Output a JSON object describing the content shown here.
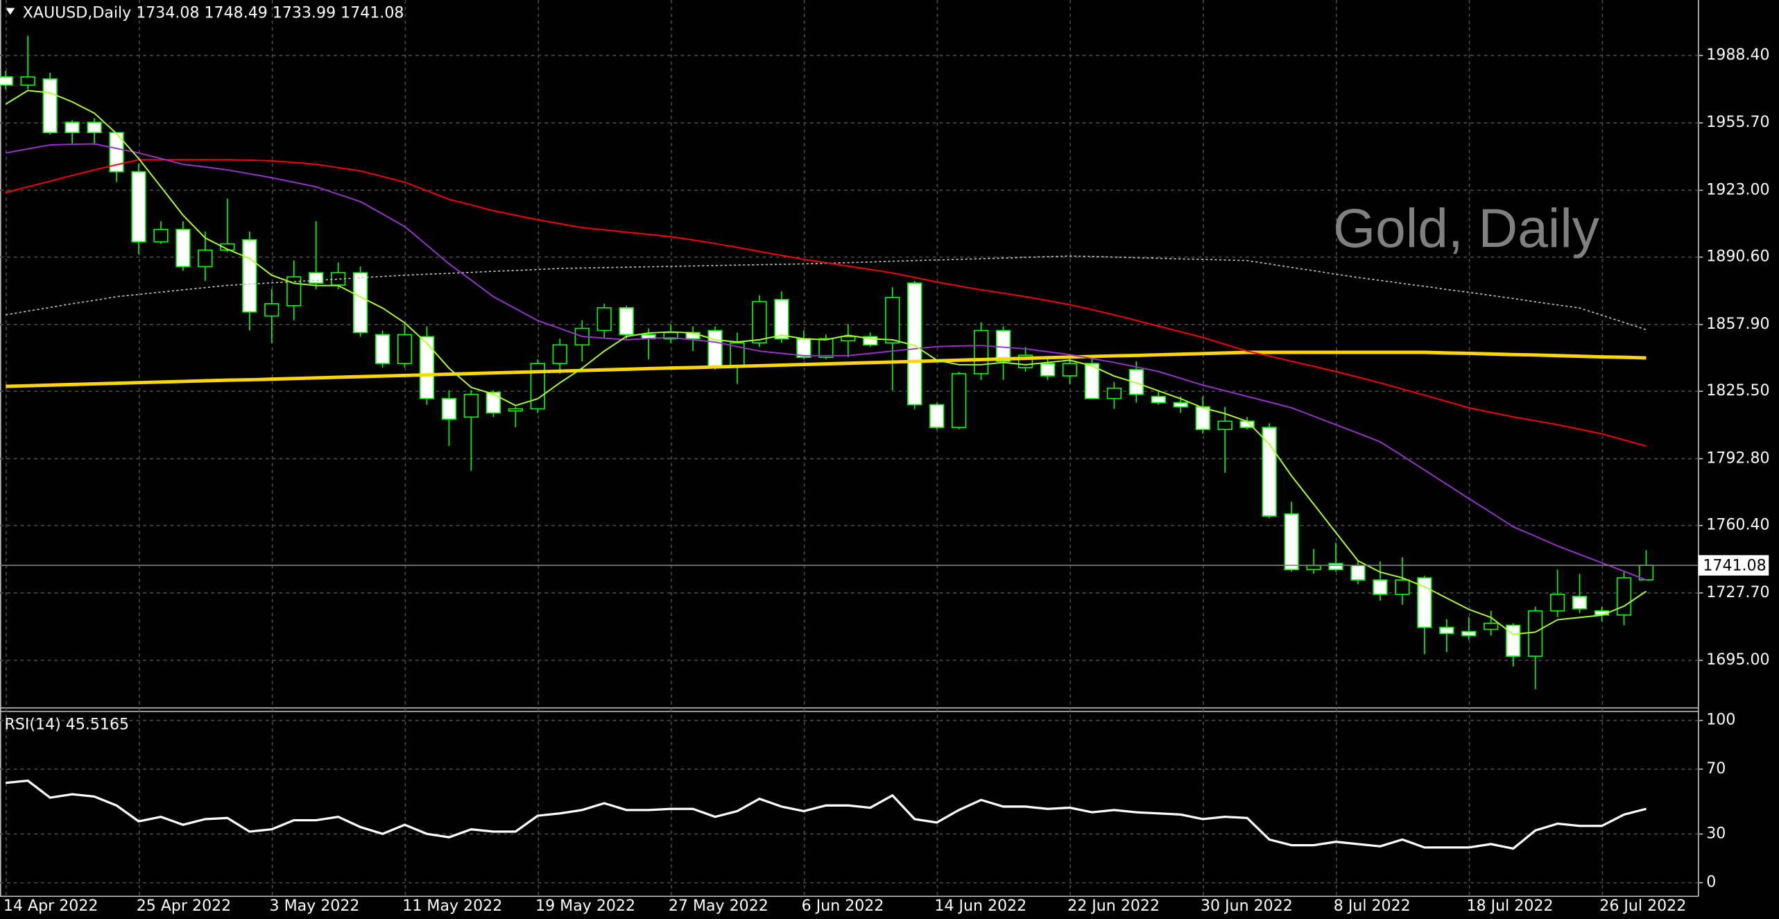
{
  "chart_data": [
    {
      "type": "candlestick",
      "title": "XAUUSD,Daily  1734.08 1748.49 1733.99 1741.08",
      "watermark": "Gold, Daily",
      "categories": [
        "14 Apr 2022",
        null,
        null,
        null,
        null,
        null,
        "25 Apr 2022",
        null,
        null,
        null,
        null,
        null,
        "3 May 2022",
        null,
        null,
        null,
        null,
        null,
        "11 May 2022",
        null,
        null,
        null,
        null,
        null,
        "19 May 2022",
        null,
        null,
        null,
        null,
        null,
        "27 May 2022",
        null,
        null,
        null,
        null,
        null,
        "6 Jun 2022",
        null,
        null,
        null,
        null,
        null,
        "14 Jun 2022",
        null,
        null,
        null,
        null,
        null,
        "22 Jun 2022",
        null,
        null,
        null,
        null,
        null,
        "30 Jun 2022",
        null,
        null,
        null,
        null,
        null,
        "8 Jul 2022",
        null,
        null,
        null,
        null,
        null,
        "18 Jul 2022",
        null,
        null,
        null,
        null,
        null,
        "26 Jul 2022",
        null,
        null
      ],
      "open": [
        1978,
        1974,
        1977,
        1956,
        1956,
        1951,
        1932,
        1898,
        1904,
        1886,
        1894,
        1899,
        1862,
        1867,
        1883,
        1877,
        1883,
        1853,
        1839,
        1852,
        1822,
        1813,
        1825,
        1816,
        1817,
        1839,
        1848,
        1855,
        1866,
        1853,
        1851,
        1854,
        1855,
        1838,
        1849,
        1870,
        1851,
        1842,
        1850,
        1852,
        1849,
        1878,
        1819,
        1808,
        1834,
        1855,
        1837,
        1839,
        1833,
        1839,
        1822,
        1836,
        1823,
        1820,
        1818,
        1807,
        1811,
        1808,
        1766,
        1739,
        1742,
        1741,
        1734,
        1727,
        1735,
        1711,
        1709,
        1710,
        1712,
        1697,
        1719,
        1726,
        1719,
        1717,
        1734.08
      ],
      "high": [
        1981,
        1998,
        1980,
        1957,
        1958,
        1951,
        1936,
        1908,
        1908,
        1903,
        1919,
        1903,
        1875,
        1889,
        1908,
        1888,
        1886,
        1855,
        1858,
        1857,
        1826,
        1826,
        1826,
        1818,
        1841,
        1851,
        1860,
        1868,
        1867,
        1856,
        1858,
        1857,
        1857,
        1854,
        1872,
        1874,
        1855,
        1853,
        1858,
        1854,
        1876,
        1879,
        1820,
        1835,
        1859,
        1857,
        1847,
        1842,
        1843,
        1843,
        1830,
        1840,
        1826,
        1823,
        1823,
        1818,
        1813,
        1810,
        1772,
        1749,
        1752,
        1743,
        1743,
        1745,
        1736,
        1715,
        1716,
        1719,
        1713,
        1721,
        1739,
        1737,
        1721,
        1738,
        1748.49
      ],
      "low": [
        1972,
        1972,
        1950,
        1945,
        1945,
        1927,
        1892,
        1897,
        1884,
        1879,
        1893,
        1855,
        1849,
        1860,
        1875,
        1875,
        1852,
        1837,
        1837,
        1819,
        1799,
        1787,
        1813,
        1808,
        1815,
        1834,
        1840,
        1851,
        1851,
        1841,
        1849,
        1845,
        1836,
        1829,
        1847,
        1849,
        1841,
        1841,
        1842,
        1847,
        1826,
        1817,
        1807,
        1807,
        1831,
        1831,
        1835,
        1831,
        1829,
        1822,
        1817,
        1820,
        1819,
        1815,
        1805,
        1786,
        1807,
        1764,
        1738,
        1737,
        1738,
        1732,
        1724,
        1722,
        1698,
        1699,
        1705,
        1707,
        1692,
        1681,
        1716,
        1718,
        1714,
        1712,
        1733.99
      ],
      "close": [
        1974,
        1978,
        1951,
        1951,
        1951,
        1932,
        1898,
        1904,
        1886,
        1894,
        1897,
        1864,
        1868,
        1881,
        1878,
        1883,
        1854,
        1839,
        1853,
        1822,
        1812,
        1824,
        1815,
        1817,
        1839,
        1848,
        1856,
        1866,
        1853,
        1851,
        1854,
        1851,
        1837,
        1849,
        1869,
        1851,
        1842,
        1851,
        1852,
        1848,
        1871,
        1819,
        1808,
        1834,
        1855,
        1840,
        1843,
        1833,
        1839,
        1822,
        1827,
        1824,
        1820,
        1818,
        1807,
        1811,
        1808,
        1765,
        1739,
        1741,
        1739,
        1734,
        1727,
        1734,
        1711,
        1708,
        1707,
        1713,
        1697,
        1719,
        1727,
        1720,
        1717,
        1735,
        1741.08
      ],
      "up_color": "#000000",
      "down_color": "#ffffff",
      "wick_color": "#00ff00",
      "overlays": [
        {
          "color": "#c0c0c0",
          "style": "dotted",
          "values": [
            1862.6,
            1864.4,
            1866.2,
            1868.0,
            1869.6,
            1871.4,
            1872.5,
            1873.6,
            1874.7,
            1875.8,
            1876.9,
            1877.5,
            1878.1,
            1878.7,
            1879.3,
            1879.9,
            1880.6,
            1881.2,
            1881.8,
            1882.3,
            1882.7,
            1883.2,
            1883.7,
            1884.1,
            1884.6,
            1885.1,
            1885.3,
            1885.5,
            1885.7,
            1885.9,
            1886.1,
            1886.3,
            1886.5,
            1886.7,
            1886.9,
            1887.1,
            1887.3,
            1887.6,
            1887.9,
            1888.2,
            1888.6,
            1888.9,
            1889.2,
            1889.5,
            1889.8,
            1890.1,
            1890.5,
            1890.8,
            1891.1,
            1890.9,
            1890.6,
            1890.3,
            1890.0,
            1889.7,
            1889.5,
            1889.2,
            1888.9,
            1887.3,
            1885.6,
            1884.0,
            1882.3,
            1880.7,
            1879.3,
            1877.8,
            1876.4,
            1874.9,
            1873.5,
            1872.0,
            1870.5,
            1868.9,
            1867.4,
            1865.9,
            1862.4,
            1858.9,
            1855.4
          ]
        },
        {
          "color": "#ffd700",
          "style": "thick",
          "values": [
            1827.9,
            1828.2,
            1828.5,
            1828.8,
            1829.1,
            1829.4,
            1829.7,
            1830.0,
            1830.3,
            1830.6,
            1830.9,
            1831.1,
            1831.4,
            1831.7,
            1832.0,
            1832.3,
            1832.6,
            1832.9,
            1833.2,
            1833.5,
            1833.8,
            1834.1,
            1834.4,
            1834.7,
            1835.0,
            1835.3,
            1835.6,
            1835.9,
            1836.2,
            1836.5,
            1836.8,
            1837.0,
            1837.3,
            1837.6,
            1837.9,
            1838.2,
            1838.5,
            1838.8,
            1839.1,
            1839.4,
            1839.7,
            1840.0,
            1840.3,
            1840.6,
            1840.9,
            1841.2,
            1841.5,
            1841.8,
            1842.1,
            1842.4,
            1842.7,
            1842.9,
            1843.2,
            1843.5,
            1843.8,
            1844.1,
            1844.4,
            1844.4,
            1844.4,
            1844.4,
            1844.4,
            1844.4,
            1844.4,
            1844.4,
            1844.4,
            1844.1,
            1843.9,
            1843.6,
            1843.3,
            1843.1,
            1842.8,
            1842.5,
            1842.2,
            1842.0,
            1841.7
          ]
        },
        {
          "color": "#ff0000",
          "style": "solid",
          "values": [
            1921.9,
            1924.7,
            1927.4,
            1930.2,
            1932.9,
            1935.4,
            1937.8,
            1937.8,
            1937.8,
            1937.8,
            1937.8,
            1937.6,
            1937.3,
            1936.5,
            1935.6,
            1934.0,
            1932.4,
            1929.7,
            1926.9,
            1922.8,
            1918.6,
            1915.9,
            1913.1,
            1910.9,
            1908.7,
            1906.8,
            1904.9,
            1903.8,
            1902.7,
            1901.6,
            1900.5,
            1898.9,
            1897.2,
            1895.3,
            1893.3,
            1891.4,
            1889.5,
            1887.9,
            1886.2,
            1884.6,
            1882.9,
            1880.7,
            1878.5,
            1876.6,
            1874.7,
            1873.1,
            1871.4,
            1869.5,
            1867.5,
            1865.1,
            1862.6,
            1859.9,
            1857.1,
            1854.4,
            1851.6,
            1848.3,
            1845.0,
            1842.6,
            1840.1,
            1837.6,
            1835.1,
            1832.4,
            1829.6,
            1826.6,
            1823.6,
            1820.6,
            1817.5,
            1815.3,
            1813.1,
            1811.2,
            1809.3,
            1807.1,
            1804.9,
            1801.9,
            1798.9
          ]
        },
        {
          "color": "#9932cc",
          "style": "solid",
          "values": [
            1941.1,
            1943.1,
            1945.0,
            1945.3,
            1945.5,
            1943.3,
            1941.1,
            1938.4,
            1935.6,
            1934.3,
            1932.9,
            1931.0,
            1929.1,
            1926.9,
            1924.7,
            1921.1,
            1917.5,
            1911.5,
            1905.4,
            1896.4,
            1887.3,
            1879.4,
            1871.4,
            1865.6,
            1859.8,
            1856.0,
            1852.1,
            1851.3,
            1850.5,
            1851.1,
            1851.6,
            1850.5,
            1849.4,
            1847.2,
            1845.0,
            1843.9,
            1842.8,
            1842.8,
            1842.8,
            1843.9,
            1845.0,
            1846.1,
            1847.2,
            1847.5,
            1847.7,
            1846.9,
            1846.1,
            1844.7,
            1843.3,
            1841.4,
            1839.5,
            1837.3,
            1835.1,
            1831.8,
            1828.5,
            1825.8,
            1823.0,
            1820.3,
            1817.5,
            1813.4,
            1809.3,
            1805.2,
            1801.0,
            1794.2,
            1787.3,
            1780.4,
            1773.5,
            1766.7,
            1759.8,
            1755.2,
            1750.5,
            1746.4,
            1742.3,
            1738.2,
            1734.0
          ]
        },
        {
          "color": "#adff2f",
          "style": "solid",
          "values": [
            1964.8,
            1971.4,
            1970.3,
            1965.9,
            1960.4,
            1950.5,
            1938.4,
            1924.7,
            1910.9,
            1899.9,
            1894.4,
            1890.0,
            1881.8,
            1877.9,
            1876.8,
            1876.8,
            1871.3,
            1865.9,
            1858.7,
            1848.8,
            1836.7,
            1827.4,
            1824.1,
            1818.6,
            1821.9,
            1829.6,
            1836.7,
            1845.0,
            1852.1,
            1853.8,
            1854.3,
            1853.8,
            1850.5,
            1849.4,
            1850.5,
            1852.7,
            1851.0,
            1850.5,
            1852.7,
            1851.0,
            1850.5,
            1847.7,
            1840.6,
            1838.4,
            1838.4,
            1839.5,
            1838.4,
            1839.5,
            1840.6,
            1837.8,
            1832.9,
            1829.6,
            1825.7,
            1821.9,
            1817.5,
            1814.7,
            1810.9,
            1799.9,
            1784.5,
            1770.8,
            1757.0,
            1743.3,
            1737.8,
            1735.0,
            1730.7,
            1725.2,
            1719.7,
            1715.8,
            1707.6,
            1708.7,
            1714.7,
            1715.8,
            1716.9,
            1721.3,
            1728.5
          ]
        }
      ],
      "ylim": [
        1671.9,
        2015.3
      ],
      "yticks": [
        {
          "value": 1695,
          "label": "1695.00"
        },
        {
          "value": 1727.7,
          "label": "1727.70"
        },
        {
          "value": 1760.4,
          "label": "1760.40"
        },
        {
          "value": 1792.8,
          "label": "1792.80"
        },
        {
          "value": 1825.5,
          "label": "1825.50"
        },
        {
          "value": 1857.9,
          "label": "1857.90"
        },
        {
          "value": 1890.6,
          "label": "1890.60"
        },
        {
          "value": 1923,
          "label": "1923.00"
        },
        {
          "value": 1955.7,
          "label": "1955.70"
        },
        {
          "value": 1988.4,
          "label": "1988.40"
        }
      ],
      "grid": true
    },
    {
      "type": "line",
      "title": "RSI(14) 45.5165",
      "color": "#ffffff",
      "values": [
        61.5,
        62.9,
        52.4,
        54.5,
        53.1,
        47.6,
        37.8,
        40.6,
        35.7,
        39.2,
        39.9,
        31.5,
        32.9,
        38.5,
        38.5,
        40.6,
        34.3,
        30.1,
        35.7,
        30.1,
        28.0,
        32.9,
        31.5,
        31.5,
        41.3,
        42.7,
        44.8,
        49.0,
        44.8,
        44.8,
        45.5,
        45.5,
        40.6,
        44.1,
        51.7,
        46.9,
        44.1,
        47.6,
        47.6,
        46.2,
        53.8,
        39.2,
        37.1,
        44.8,
        51.0,
        46.9,
        46.9,
        45.5,
        46.2,
        43.4,
        44.8,
        43.4,
        42.7,
        42.0,
        39.2,
        40.6,
        39.9,
        26.6,
        23.1,
        23.1,
        25.2,
        23.8,
        22.4,
        26.6,
        21.7,
        21.7,
        21.7,
        23.8,
        21.0,
        32.2,
        36.4,
        35.0,
        35.0,
        42.0,
        45.5165
      ],
      "ylim": [
        -8.4,
        105.6
      ],
      "yticks": [
        0,
        30,
        70,
        100
      ],
      "grid": true
    }
  ]
}
